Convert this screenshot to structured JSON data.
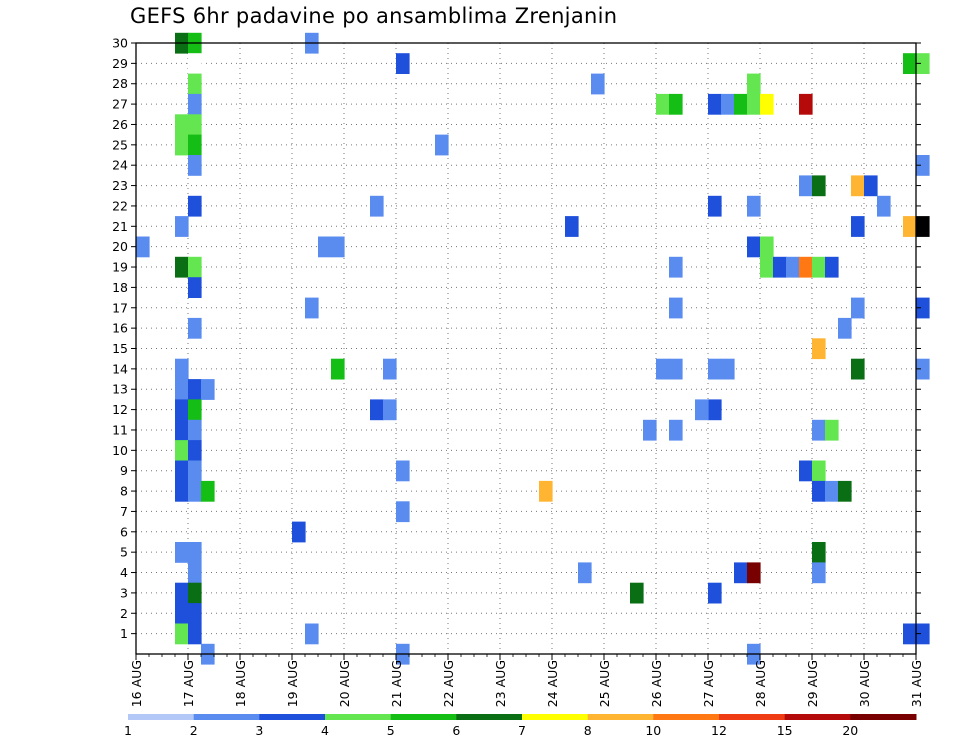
{
  "chart_data": {
    "type": "heatmap",
    "title": "GEFS 6hr padavine po ansamblima Zrenjanin",
    "x_tick_labels": [
      "16 AUG",
      "17 AUG",
      "18 AUG",
      "19 AUG",
      "20 AUG",
      "21 AUG",
      "22 AUG",
      "23 AUG",
      "24 AUG",
      "25 AUG",
      "26 AUG",
      "27 AUG",
      "28 AUG",
      "29 AUG",
      "30 AUG",
      "31 AUG"
    ],
    "y_tick_labels": [
      "1",
      "2",
      "3",
      "4",
      "5",
      "6",
      "7",
      "8",
      "9",
      "10",
      "11",
      "12",
      "13",
      "14",
      "15",
      "16",
      "17",
      "18",
      "19",
      "20",
      "21",
      "22",
      "23",
      "24",
      "25",
      "26",
      "27",
      "28",
      "29",
      "30"
    ],
    "x_range_days": [
      0,
      15
    ],
    "y_range": [
      0,
      30
    ],
    "time_step_hours": 6,
    "grid": "dotted",
    "colorbar": {
      "tick_labels": [
        "1",
        "2",
        "3",
        "4",
        "5",
        "6",
        "7",
        "8",
        "10",
        "12",
        "15",
        "20"
      ],
      "colors": [
        "#b4c8f8",
        "#5a8cf0",
        "#1e50dc",
        "#64e650",
        "#14be14",
        "#0a6e14",
        "#ffff00",
        "#ffb432",
        "#ff7814",
        "#f03c14",
        "#b40a0a",
        "#780000"
      ]
    },
    "cells": [
      [
        0.75,
        30,
        5
      ],
      [
        1.0,
        30,
        4
      ],
      [
        1.0,
        29,
        null
      ],
      [
        3.25,
        30,
        1
      ],
      [
        5.0,
        29,
        2
      ],
      [
        14.75,
        29,
        4
      ],
      [
        15.0,
        29,
        3
      ],
      [
        1.0,
        28,
        3
      ],
      [
        1.0,
        27,
        1
      ],
      [
        8.75,
        28,
        1
      ],
      [
        11.75,
        28,
        3
      ],
      [
        10.0,
        27,
        3
      ],
      [
        10.25,
        27,
        4
      ],
      [
        11.0,
        27,
        2
      ],
      [
        11.25,
        27,
        1
      ],
      [
        11.5,
        27,
        4
      ],
      [
        11.75,
        27,
        3
      ],
      [
        12.0,
        27,
        6
      ],
      [
        12.75,
        27,
        10
      ],
      [
        0.75,
        26,
        3
      ],
      [
        1.0,
        26,
        3
      ],
      [
        0.75,
        25,
        3
      ],
      [
        1.0,
        25,
        4
      ],
      [
        5.75,
        25,
        1
      ],
      [
        1.0,
        24,
        1
      ],
      [
        15.0,
        24,
        1
      ],
      [
        12.75,
        23,
        1
      ],
      [
        13.0,
        23,
        5
      ],
      [
        13.75,
        23,
        7
      ],
      [
        14.0,
        23,
        2
      ],
      [
        1.0,
        22,
        2
      ],
      [
        4.5,
        22,
        1
      ],
      [
        11.0,
        22,
        2
      ],
      [
        11.75,
        22,
        1
      ],
      [
        14.25,
        22,
        1
      ],
      [
        0.75,
        21,
        1
      ],
      [
        8.25,
        21,
        2
      ],
      [
        13.75,
        21,
        2
      ],
      [
        14.75,
        21,
        7
      ],
      [
        15.0,
        21,
        12
      ],
      [
        0.0,
        20,
        1
      ],
      [
        3.5,
        20,
        1
      ],
      [
        3.75,
        20,
        1
      ],
      [
        11.75,
        20,
        2
      ],
      [
        12.0,
        20,
        3
      ],
      [
        0.75,
        19,
        5
      ],
      [
        1.0,
        19,
        3
      ],
      [
        10.25,
        19,
        1
      ],
      [
        12.0,
        19,
        3
      ],
      [
        12.25,
        19,
        2
      ],
      [
        12.5,
        19,
        1
      ],
      [
        12.75,
        19,
        8
      ],
      [
        13.0,
        19,
        3
      ],
      [
        13.25,
        19,
        2
      ],
      [
        1.0,
        18,
        2
      ],
      [
        3.25,
        17,
        1
      ],
      [
        10.25,
        17,
        1
      ],
      [
        13.75,
        17,
        1
      ],
      [
        15.0,
        17,
        2
      ],
      [
        1.0,
        16,
        1
      ],
      [
        13.5,
        16,
        1
      ],
      [
        13.0,
        15,
        7
      ],
      [
        0.75,
        14,
        1
      ],
      [
        3.75,
        14,
        4
      ],
      [
        4.75,
        14,
        1
      ],
      [
        10.0,
        14,
        1
      ],
      [
        10.25,
        14,
        1
      ],
      [
        11.0,
        14,
        1
      ],
      [
        11.25,
        14,
        1
      ],
      [
        13.75,
        14,
        5
      ],
      [
        15.0,
        14,
        1
      ],
      [
        0.75,
        13,
        1
      ],
      [
        1.0,
        13,
        2
      ],
      [
        1.25,
        13,
        1
      ],
      [
        11.0,
        12,
        2
      ],
      [
        10.75,
        12,
        1
      ],
      [
        0.75,
        12,
        2
      ],
      [
        1.0,
        12,
        4
      ],
      [
        4.5,
        12,
        2
      ],
      [
        4.75,
        12,
        1
      ],
      [
        0.75,
        11,
        2
      ],
      [
        1.0,
        11,
        1
      ],
      [
        9.75,
        11,
        1
      ],
      [
        10.25,
        11,
        1
      ],
      [
        13.0,
        11,
        1
      ],
      [
        13.25,
        11,
        3
      ],
      [
        0.75,
        10,
        3
      ],
      [
        1.0,
        10,
        2
      ],
      [
        5.0,
        9,
        1
      ],
      [
        12.75,
        9,
        2
      ],
      [
        13.0,
        9,
        3
      ],
      [
        0.75,
        9,
        2
      ],
      [
        1.0,
        9,
        1
      ],
      [
        7.75,
        8,
        7
      ],
      [
        13.0,
        8,
        2
      ],
      [
        13.25,
        8,
        1
      ],
      [
        13.5,
        8,
        5
      ],
      [
        0.75,
        8,
        2
      ],
      [
        1.0,
        8,
        1
      ],
      [
        1.25,
        8,
        4
      ],
      [
        5.0,
        7,
        1
      ],
      [
        3.0,
        6,
        2
      ],
      [
        0.75,
        5,
        1
      ],
      [
        1.0,
        5,
        1
      ],
      [
        13.0,
        5,
        5
      ],
      [
        1.0,
        4,
        1
      ],
      [
        8.5,
        4,
        1
      ],
      [
        11.5,
        4,
        2
      ],
      [
        11.75,
        4,
        11
      ],
      [
        13.0,
        4,
        1
      ],
      [
        0.75,
        3,
        2
      ],
      [
        1.0,
        3,
        5
      ],
      [
        9.5,
        3,
        5
      ],
      [
        11.0,
        3,
        2
      ],
      [
        0.75,
        2,
        2
      ],
      [
        1.0,
        2,
        2
      ],
      [
        0.75,
        1,
        3
      ],
      [
        1.0,
        1,
        2
      ],
      [
        3.25,
        1,
        1
      ],
      [
        14.75,
        1,
        2
      ],
      [
        15.0,
        1,
        2
      ],
      [
        1.25,
        0,
        1
      ],
      [
        5.0,
        0,
        1
      ],
      [
        11.75,
        0,
        1
      ]
    ]
  }
}
